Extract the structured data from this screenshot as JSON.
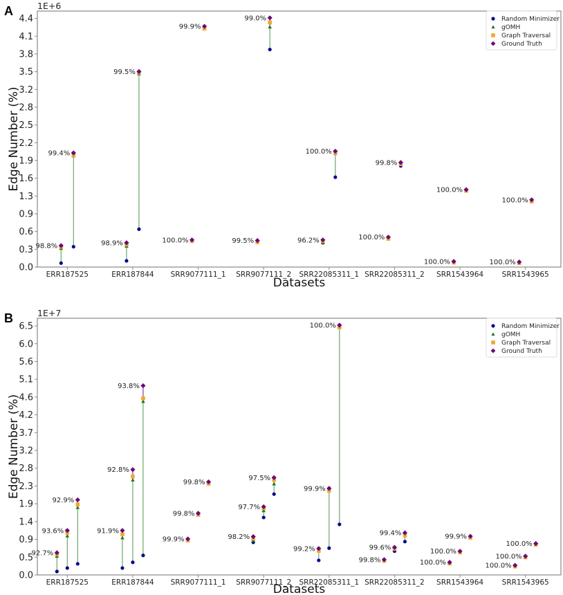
{
  "colors": {
    "random_minimizer": "#0a0a8c",
    "gomh": "#1e7a1e",
    "graph_traversal": "#f0a830",
    "ground_truth": "#6a0a7a",
    "connector": "#6aa86a",
    "connector_top": "#8a3a9a",
    "axis": "#888888"
  },
  "chart_data": [
    {
      "panel": "A",
      "type": "scatter",
      "title": "",
      "xlabel": "Datasets",
      "ylabel": "Edge Number (%)",
      "y_multiplier_label": "1E+6",
      "ylim": [
        0,
        4.53
      ],
      "y_ticks": [
        0.0,
        0.314,
        0.629,
        0.943,
        1.257,
        1.571,
        1.886,
        2.2,
        2.514,
        2.829,
        3.143,
        3.457,
        3.771,
        4.086,
        4.4
      ],
      "y_tick_labels": [
        "0.0",
        "0.3",
        "0.6",
        "0.9",
        "1.3",
        "1.6",
        "1.9",
        "2.2",
        "2.5",
        "2.8",
        "3.2",
        "3.5",
        "3.8",
        "4.1",
        "4.4"
      ],
      "categories": [
        "ERR187525",
        "ERR187844",
        "SRR9077111_1",
        "SRR9077111_2",
        "SRR22085311_1",
        "SRR22085311_2",
        "SRR1543964",
        "SRR1543965"
      ],
      "legend": [
        "Random Minimizer",
        "gOMH",
        "Graph Traversal",
        "Ground Truth"
      ],
      "legend_position": "top-right",
      "groups": [
        {
          "category": "ERR187525",
          "points": [
            {
              "rm": 0.07,
              "gomh": 0.33,
              "gt_trav": 0.36,
              "truth": 0.38,
              "label": "98.8%"
            },
            {
              "rm": 0.36,
              "gomh": 1.97,
              "gt_trav": 1.98,
              "truth": 2.02,
              "label": "99.4%"
            }
          ]
        },
        {
          "category": "ERR187844",
          "points": [
            {
              "rm": 0.11,
              "gomh": 0.37,
              "gt_trav": 0.4,
              "truth": 0.43,
              "label": "98.9%"
            },
            {
              "rm": 0.67,
              "gomh": 3.42,
              "gt_trav": 3.44,
              "truth": 3.46,
              "label": "99.5%"
            }
          ]
        },
        {
          "category": "SRR9077111_1",
          "points": [
            {
              "rm": 0.46,
              "gomh": 0.46,
              "gt_trav": 0.46,
              "truth": 0.48,
              "label": "100.0%"
            },
            {
              "rm": 4.22,
              "gomh": 4.22,
              "gt_trav": 4.22,
              "truth": 4.26,
              "label": "99.9%"
            }
          ]
        },
        {
          "category": "SRR9077111_2",
          "points": [
            {
              "rm": 0.44,
              "gomh": 0.44,
              "gt_trav": 0.44,
              "truth": 0.47,
              "label": "99.5%"
            },
            {
              "rm": 3.85,
              "gomh": 4.25,
              "gt_trav": 4.33,
              "truth": 4.41,
              "label": "99.0%"
            }
          ]
        },
        {
          "category": "SRR22085311_1",
          "points": [
            {
              "rm": 0.43,
              "gomh": 0.43,
              "gt_trav": 0.46,
              "truth": 0.48,
              "label": "96.2%"
            },
            {
              "rm": 1.59,
              "gomh": 2.01,
              "gt_trav": 2.02,
              "truth": 2.05,
              "label": "100.0%"
            }
          ]
        },
        {
          "category": "SRR22085311_2",
          "points": [
            {
              "rm": 0.5,
              "gomh": 0.5,
              "gt_trav": 0.5,
              "truth": 0.53,
              "label": "100.0%"
            },
            {
              "rm": 1.79,
              "gomh": 1.82,
              "gt_trav": 1.82,
              "truth": 1.85,
              "label": "99.8%"
            }
          ]
        },
        {
          "category": "SRR1543964",
          "points": [
            {
              "rm": 0.08,
              "gomh": 0.08,
              "gt_trav": 0.08,
              "truth": 0.1,
              "label": "100.0%"
            },
            {
              "rm": 1.35,
              "gomh": 1.35,
              "gt_trav": 1.35,
              "truth": 1.37,
              "label": "100.0%"
            }
          ]
        },
        {
          "category": "SRR1543965",
          "points": [
            {
              "rm": 0.07,
              "gomh": 0.07,
              "gt_trav": 0.07,
              "truth": 0.09,
              "label": "100.0%"
            },
            {
              "rm": 1.16,
              "gomh": 1.16,
              "gt_trav": 1.16,
              "truth": 1.19,
              "label": "100.0%"
            }
          ]
        }
      ]
    },
    {
      "panel": "B",
      "type": "scatter",
      "title": "",
      "xlabel": "Datasets",
      "ylabel": "Edge Number (%)",
      "y_multiplier_label": "1E+7",
      "ylim": [
        0,
        6.7
      ],
      "y_ticks": [
        0.0,
        0.464,
        0.929,
        1.393,
        1.857,
        2.321,
        2.786,
        3.25,
        3.714,
        4.179,
        4.643,
        5.107,
        5.571,
        6.036,
        6.5
      ],
      "y_tick_labels": [
        "0.0",
        "0.5",
        "0.9",
        "1.4",
        "1.9",
        "2.3",
        "2.8",
        "3.2",
        "3.7",
        "4.2",
        "4.6",
        "5.1",
        "5.6",
        "6.0",
        "6.5"
      ],
      "categories": [
        "ERR187525",
        "ERR187844",
        "SRR9077111_1",
        "SRR9077111_2",
        "SRR22085311_1",
        "SRR22085311_2",
        "SRR1543964",
        "SRR1543965"
      ],
      "legend": [
        "Random Minimizer",
        "gOMH",
        "Graph Traversal",
        "Ground Truth"
      ],
      "legend_position": "top-right",
      "groups": [
        {
          "category": "ERR187525",
          "points": [
            {
              "rm": 0.09,
              "gomh": 0.49,
              "gt_trav": 0.54,
              "truth": 0.58,
              "label": "92.7%"
            },
            {
              "rm": 0.18,
              "gomh": 1.02,
              "gt_trav": 1.1,
              "truth": 1.16,
              "label": "93.6%"
            },
            {
              "rm": 0.29,
              "gomh": 1.76,
              "gt_trav": 1.84,
              "truth": 1.96,
              "label": "92.9%"
            }
          ]
        },
        {
          "category": "ERR187844",
          "points": [
            {
              "rm": 0.18,
              "gomh": 0.97,
              "gt_trav": 1.06,
              "truth": 1.16,
              "label": "91.9%"
            },
            {
              "rm": 0.33,
              "gomh": 2.48,
              "gt_trav": 2.57,
              "truth": 2.75,
              "label": "92.8%"
            },
            {
              "rm": 0.51,
              "gomh": 4.53,
              "gt_trav": 4.61,
              "truth": 4.94,
              "label": "93.8%"
            }
          ]
        },
        {
          "category": "SRR9077111_1",
          "points": [
            {
              "rm": 0.9,
              "gomh": 0.9,
              "gt_trav": 0.9,
              "truth": 0.94,
              "label": "99.9%"
            },
            {
              "rm": 1.57,
              "gomh": 1.57,
              "gt_trav": 1.57,
              "truth": 1.61,
              "label": "99.8%"
            },
            {
              "rm": 2.38,
              "gomh": 2.38,
              "gt_trav": 2.38,
              "truth": 2.43,
              "label": "99.8%"
            }
          ]
        },
        {
          "category": "SRR9077111_2",
          "points": [
            {
              "rm": 0.85,
              "gomh": 0.9,
              "gt_trav": 0.95,
              "truth": 1.0,
              "label": "98.2%"
            },
            {
              "rm": 1.5,
              "gomh": 1.68,
              "gt_trav": 1.74,
              "truth": 1.78,
              "label": "97.7%"
            },
            {
              "rm": 2.11,
              "gomh": 2.38,
              "gt_trav": 2.48,
              "truth": 2.54,
              "label": "97.5%"
            }
          ]
        },
        {
          "category": "SRR22085311_1",
          "points": [
            {
              "rm": 0.38,
              "gomh": 0.63,
              "gt_trav": 0.63,
              "truth": 0.69,
              "label": "99.2%"
            },
            {
              "rm": 0.7,
              "gomh": 2.2,
              "gt_trav": 2.2,
              "truth": 2.26,
              "label": "99.9%"
            },
            {
              "rm": 1.32,
              "gomh": 6.46,
              "gt_trav": 6.46,
              "truth": 6.52,
              "label": "100.0%"
            }
          ]
        },
        {
          "category": "SRR22085311_2",
          "points": [
            {
              "rm": 0.37,
              "gomh": 0.37,
              "gt_trav": 0.37,
              "truth": 0.4,
              "label": "99.8%"
            },
            {
              "rm": 0.62,
              "gomh": 0.68,
              "gt_trav": 0.68,
              "truth": 0.72,
              "label": "99.6%"
            },
            {
              "rm": 0.87,
              "gomh": 1.03,
              "gt_trav": 1.03,
              "truth": 1.1,
              "label": "99.4%"
            }
          ]
        },
        {
          "category": "SRR1543964",
          "points": [
            {
              "rm": 0.3,
              "gomh": 0.3,
              "gt_trav": 0.3,
              "truth": 0.33,
              "label": "100.0%"
            },
            {
              "rm": 0.59,
              "gomh": 0.59,
              "gt_trav": 0.59,
              "truth": 0.62,
              "label": "100.0%"
            },
            {
              "rm": 0.97,
              "gomh": 0.97,
              "gt_trav": 0.97,
              "truth": 1.01,
              "label": "99.9%"
            }
          ]
        },
        {
          "category": "SRR1543965",
          "points": [
            {
              "rm": 0.22,
              "gomh": 0.22,
              "gt_trav": 0.22,
              "truth": 0.25,
              "label": "100.0%"
            },
            {
              "rm": 0.46,
              "gomh": 0.46,
              "gt_trav": 0.46,
              "truth": 0.49,
              "label": "100.0%"
            },
            {
              "rm": 0.79,
              "gomh": 0.79,
              "gt_trav": 0.79,
              "truth": 0.82,
              "label": "100.0%"
            }
          ]
        }
      ]
    }
  ]
}
